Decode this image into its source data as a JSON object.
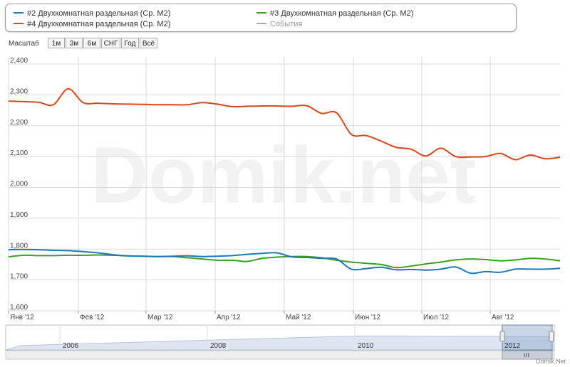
{
  "legend": {
    "items": [
      {
        "label": "#2 Двухкомнатная раздельная (Ср. M2)",
        "color": "#1f77b4"
      },
      {
        "label": "#3 Двухкомнатная раздельная (Ср. M2)",
        "color": "#3aa021"
      },
      {
        "label": "#4 Двухкомнатная раздельная (Ср. M2)",
        "color": "#d9471b"
      },
      {
        "label": "События",
        "color": "#aaaaaa"
      }
    ]
  },
  "zoom": {
    "label": "Масштаб",
    "buttons": [
      "1м",
      "3м",
      "6м",
      "СНГ",
      "Год",
      "Всё"
    ]
  },
  "watermark": "Domik.net",
  "credit": "Domik.Net",
  "navigator": {
    "years": [
      "2006",
      "2008",
      "2010",
      "2012"
    ]
  },
  "chart_data": {
    "type": "line",
    "grid": true,
    "ylim": [
      1600,
      2400
    ],
    "y_ticks": [
      "1,600",
      "1,700",
      "1,800",
      "1,900",
      "2,000",
      "2,100",
      "2,200",
      "2,300",
      "2,400"
    ],
    "x_ticks": [
      "Янв '12",
      "Фев '12",
      "Мар '12",
      "Апр '12",
      "Май '12",
      "Июн '12",
      "Июл '12",
      "Авг '12"
    ],
    "series": [
      {
        "name": "#4 Двухкомнатная раздельная (Ср. M2)",
        "color": "#d9471b",
        "values": [
          2280,
          2278,
          2276,
          2268,
          2320,
          2275,
          2273,
          2271,
          2270,
          2269,
          2268,
          2268,
          2268,
          2275,
          2270,
          2262,
          2263,
          2264,
          2264,
          2263,
          2265,
          2240,
          2242,
          2172,
          2168,
          2150,
          2130,
          2124,
          2102,
          2127,
          2100,
          2099,
          2100,
          2110,
          2090,
          2105,
          2093,
          2098
        ]
      },
      {
        "name": "#3 Двухкомнатная раздельная (Ср. M2)",
        "color": "#3aa021",
        "values": [
          1775,
          1780,
          1779,
          1779,
          1780,
          1780,
          1781,
          1780,
          1778,
          1777,
          1776,
          1776,
          1772,
          1768,
          1764,
          1764,
          1760,
          1770,
          1774,
          1776,
          1776,
          1772,
          1764,
          1758,
          1754,
          1750,
          1740,
          1745,
          1752,
          1758,
          1765,
          1768,
          1766,
          1762,
          1765,
          1770,
          1768,
          1762
        ]
      },
      {
        "name": "#2 Двухкомнатная раздельная (Ср. M2)",
        "color": "#1f77b4",
        "values": [
          1798,
          1799,
          1798,
          1796,
          1795,
          1792,
          1788,
          1782,
          1778,
          1777,
          1776,
          1777,
          1778,
          1776,
          1777,
          1779,
          1783,
          1786,
          1788,
          1775,
          1773,
          1770,
          1768,
          1735,
          1737,
          1741,
          1733,
          1734,
          1732,
          1735,
          1742,
          1722,
          1727,
          1725,
          1735,
          1735,
          1735,
          1738
        ]
      }
    ]
  }
}
